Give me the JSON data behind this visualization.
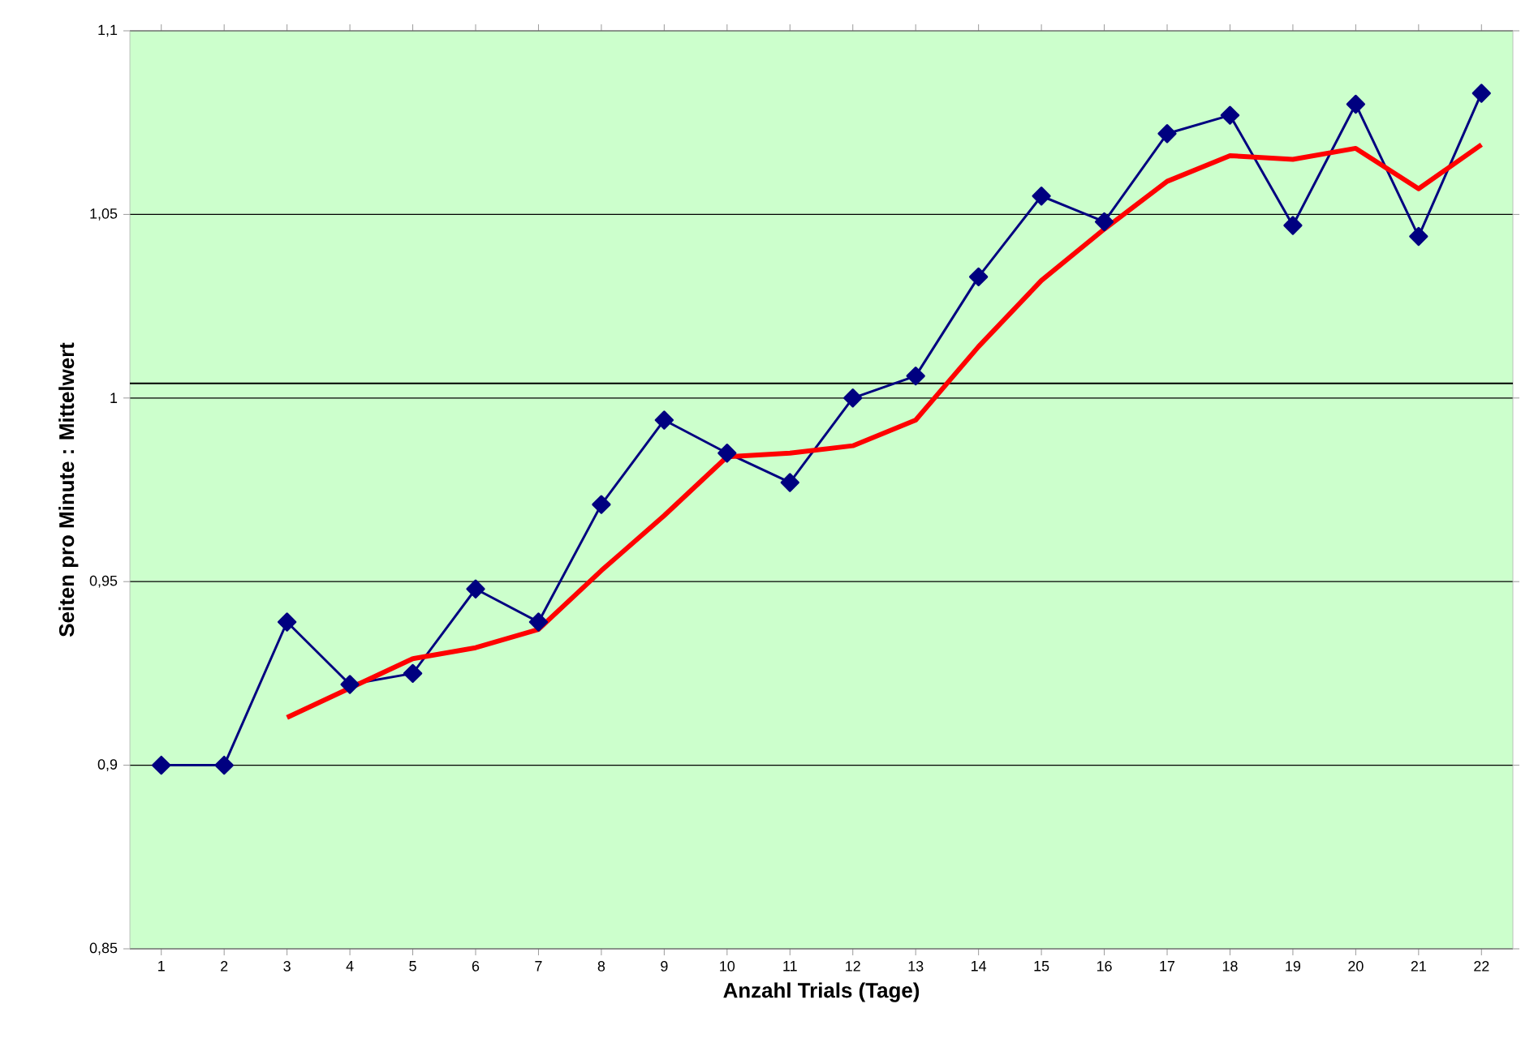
{
  "chart_data": {
    "type": "line",
    "xlabel": "Anzahl Trials (Tage)",
    "ylabel": "Seiten pro Minute : Mittelwert",
    "categories": [
      "1",
      "2",
      "3",
      "4",
      "5",
      "6",
      "7",
      "8",
      "9",
      "10",
      "11",
      "12",
      "13",
      "14",
      "15",
      "16",
      "17",
      "18",
      "19",
      "20",
      "21",
      "22"
    ],
    "series": [
      {
        "color": "#000080",
        "marker": "diamond",
        "values": [
          0.9,
          0.9,
          0.939,
          0.922,
          0.925,
          0.948,
          0.939,
          0.971,
          0.994,
          0.985,
          0.977,
          1.0,
          1.006,
          1.033,
          1.055,
          1.048,
          1.072,
          1.077,
          1.047,
          1.08,
          1.044,
          1.083
        ]
      },
      {
        "color": "#ff0000",
        "marker": "none",
        "values": [
          null,
          null,
          0.913,
          0.921,
          0.929,
          0.932,
          0.937,
          0.953,
          0.968,
          0.984,
          0.985,
          0.987,
          0.994,
          1.014,
          1.032,
          1.046,
          1.059,
          1.066,
          1.065,
          1.068,
          1.057,
          1.069
        ]
      }
    ],
    "ylim": [
      0.85,
      1.1
    ],
    "yticks": [
      {
        "value": 0.85,
        "label": "0,85"
      },
      {
        "value": 0.9,
        "label": "0,9"
      },
      {
        "value": 0.95,
        "label": "0,95"
      },
      {
        "value": 1.0,
        "label": "1"
      },
      {
        "value": 1.05,
        "label": "1,05"
      },
      {
        "value": 1.1,
        "label": "1,1"
      }
    ],
    "ref_lines": [
      {
        "axis": "y",
        "value": 1.004,
        "color": "#000000"
      }
    ],
    "grid": "y"
  }
}
